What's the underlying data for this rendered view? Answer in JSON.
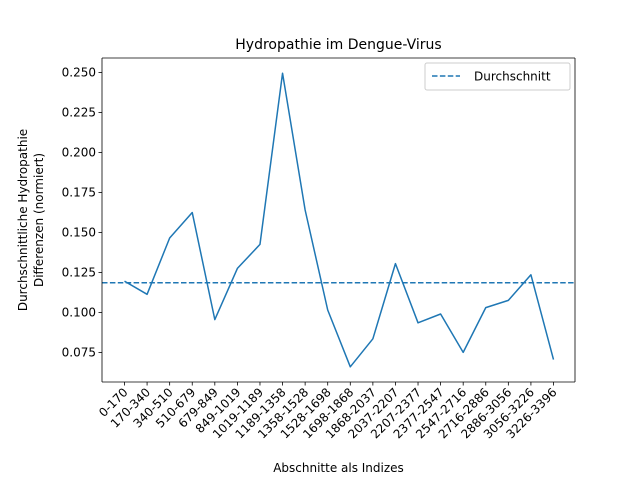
{
  "chart_data": {
    "type": "line",
    "title": "Hydropathie im Dengue-Virus",
    "xlabel": "Abschnitte als Indizes",
    "ylabel_line1": "Durchschnittliche Hydropathie",
    "ylabel_line2": "Differenzen (normiert)",
    "categories": [
      "0-170",
      "170-340",
      "340-510",
      "510-679",
      "679-849",
      "849-1019",
      "1019-1189",
      "1189-1358",
      "1358-1528",
      "1528-1698",
      "1698-1868",
      "1868-2037",
      "2037-2207",
      "2207-2377",
      "2377-2547",
      "2547-2716",
      "2716-2886",
      "2886-3056",
      "3056-3226",
      "3226-3396"
    ],
    "series": [
      {
        "values": [
          0.1195,
          0.1113,
          0.1465,
          0.1624,
          0.0955,
          0.1275,
          0.1425,
          0.2495,
          0.164,
          0.1015,
          0.066,
          0.0835,
          0.1305,
          0.0935,
          0.099,
          0.075,
          0.103,
          0.1075,
          0.1235,
          0.0705
        ],
        "color": "#1f77b4"
      }
    ],
    "reference_line": {
      "name": "Durchschnitt",
      "value": 0.1185,
      "style": "dashed",
      "color": "#1f77b4"
    },
    "yticks": [
      0.075,
      0.1,
      0.125,
      0.15,
      0.175,
      0.2,
      0.225,
      0.25
    ],
    "ytick_labels": [
      "0.075",
      "0.100",
      "0.125",
      "0.150",
      "0.175",
      "0.200",
      "0.225",
      "0.250"
    ],
    "ylim": [
      0.0565,
      0.259
    ],
    "grid": false,
    "legend_position": "top-right"
  }
}
